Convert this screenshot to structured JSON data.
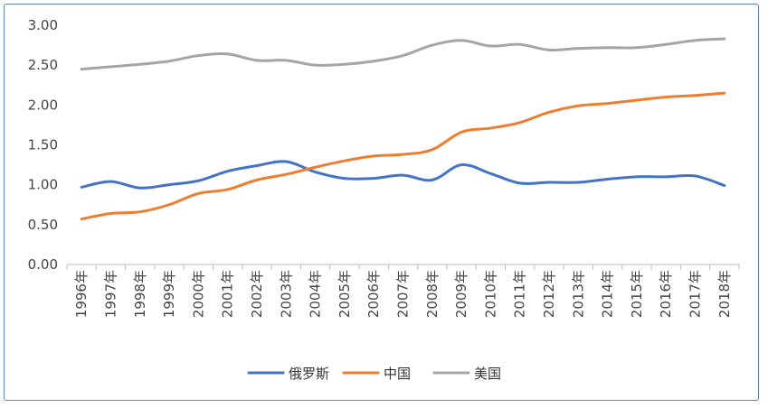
{
  "chart_data": {
    "type": "line",
    "title": "",
    "xlabel": "",
    "ylabel": "",
    "ylim": [
      0,
      3
    ],
    "yticks": [
      "0.00",
      "0.50",
      "1.00",
      "1.50",
      "2.00",
      "2.50",
      "3.00"
    ],
    "categories": [
      "1996年",
      "1997年",
      "1998年",
      "1999年",
      "2000年",
      "2001年",
      "2002年",
      "2003年",
      "2004年",
      "2005年",
      "2006年",
      "2007年",
      "2008年",
      "2009年",
      "2010年",
      "2011年",
      "2012年",
      "2013年",
      "2014年",
      "2015年",
      "2016年",
      "2017年",
      "2018年"
    ],
    "series": [
      {
        "name": "俄罗斯",
        "color": "#4472c4",
        "values": [
          0.97,
          1.04,
          0.96,
          1.0,
          1.05,
          1.17,
          1.24,
          1.29,
          1.16,
          1.08,
          1.08,
          1.12,
          1.06,
          1.25,
          1.14,
          1.02,
          1.03,
          1.03,
          1.07,
          1.1,
          1.1,
          1.11,
          0.99
        ]
      },
      {
        "name": "中国",
        "color": "#ed7d31",
        "values": [
          0.57,
          0.64,
          0.66,
          0.75,
          0.89,
          0.94,
          1.06,
          1.13,
          1.22,
          1.3,
          1.36,
          1.38,
          1.44,
          1.66,
          1.71,
          1.78,
          1.91,
          1.99,
          2.02,
          2.06,
          2.1,
          2.12,
          2.15
        ]
      },
      {
        "name": "美国",
        "color": "#a5a5a5",
        "values": [
          2.45,
          2.48,
          2.51,
          2.55,
          2.62,
          2.64,
          2.56,
          2.56,
          2.5,
          2.51,
          2.55,
          2.62,
          2.75,
          2.81,
          2.74,
          2.76,
          2.69,
          2.71,
          2.72,
          2.72,
          2.76,
          2.81,
          2.83
        ]
      }
    ],
    "legend_position": "bottom",
    "grid": false
  }
}
